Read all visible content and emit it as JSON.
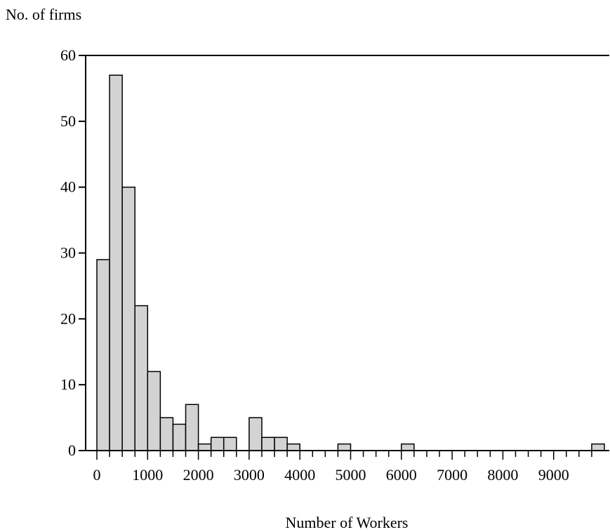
{
  "chart_data": {
    "type": "bar",
    "title": "",
    "xlabel": "Number of Workers",
    "ylabel": "No. of firms",
    "xlim": [
      0,
      10000
    ],
    "ylim": [
      0,
      60
    ],
    "bin_width": 250,
    "bar_fill": "#d3d3d3",
    "bar_stroke": "#000000",
    "grid": false,
    "x_tick_labels": [
      "0",
      "1000",
      "2000",
      "3000",
      "4000",
      "5000",
      "6000",
      "7000",
      "8000",
      "9000"
    ],
    "x_tick_values": [
      0,
      1000,
      2000,
      3000,
      4000,
      5000,
      6000,
      7000,
      8000,
      9000
    ],
    "y_tick_labels": [
      "0",
      "10",
      "20",
      "30",
      "40",
      "50",
      "60"
    ],
    "y_tick_values": [
      0,
      10,
      20,
      30,
      40,
      50,
      60
    ],
    "bins": [
      {
        "start": 0,
        "end": 250,
        "count": 29
      },
      {
        "start": 250,
        "end": 500,
        "count": 57
      },
      {
        "start": 500,
        "end": 750,
        "count": 40
      },
      {
        "start": 750,
        "end": 1000,
        "count": 22
      },
      {
        "start": 1000,
        "end": 1250,
        "count": 12
      },
      {
        "start": 1250,
        "end": 1500,
        "count": 5
      },
      {
        "start": 1500,
        "end": 1750,
        "count": 4
      },
      {
        "start": 1750,
        "end": 2000,
        "count": 7
      },
      {
        "start": 2000,
        "end": 2250,
        "count": 1
      },
      {
        "start": 2250,
        "end": 2500,
        "count": 2
      },
      {
        "start": 2500,
        "end": 2750,
        "count": 2
      },
      {
        "start": 3000,
        "end": 3250,
        "count": 5
      },
      {
        "start": 3250,
        "end": 3500,
        "count": 2
      },
      {
        "start": 3500,
        "end": 3750,
        "count": 2
      },
      {
        "start": 3750,
        "end": 4000,
        "count": 1
      },
      {
        "start": 4750,
        "end": 5000,
        "count": 1
      },
      {
        "start": 6000,
        "end": 6250,
        "count": 1
      },
      {
        "start": 9750,
        "end": 10000,
        "count": 1
      }
    ]
  }
}
